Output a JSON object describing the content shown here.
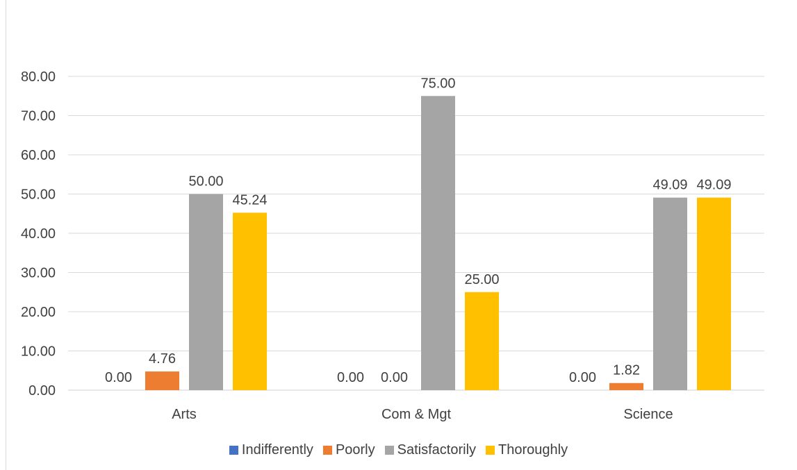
{
  "chart_data": {
    "type": "bar",
    "categories": [
      "Arts",
      "Com & Mgt",
      "Science"
    ],
    "series": [
      {
        "name": "Indifferently",
        "color": "#4472c4",
        "values": [
          0.0,
          0.0,
          0.0
        ],
        "labels": [
          "0.00",
          "0.00",
          "0.00"
        ]
      },
      {
        "name": "Poorly",
        "color": "#ed7d31",
        "values": [
          4.76,
          0.0,
          1.82
        ],
        "labels": [
          "4.76",
          "0.00",
          "1.82"
        ]
      },
      {
        "name": "Satisfactorily",
        "color": "#a5a5a5",
        "values": [
          50.0,
          75.0,
          49.09
        ],
        "labels": [
          "50.00",
          "75.00",
          "49.09"
        ]
      },
      {
        "name": "Thoroughly",
        "color": "#ffc000",
        "values": [
          45.24,
          25.0,
          49.09
        ],
        "labels": [
          "45.24",
          "25.00",
          "49.09"
        ]
      }
    ],
    "yticks": [
      "0.00",
      "10.00",
      "20.00",
      "30.00",
      "40.00",
      "50.00",
      "60.00",
      "70.00",
      "80.00"
    ],
    "ylim": [
      0,
      80
    ],
    "grid": true,
    "legend_position": "bottom",
    "title": "",
    "xlabel": "",
    "ylabel": ""
  }
}
